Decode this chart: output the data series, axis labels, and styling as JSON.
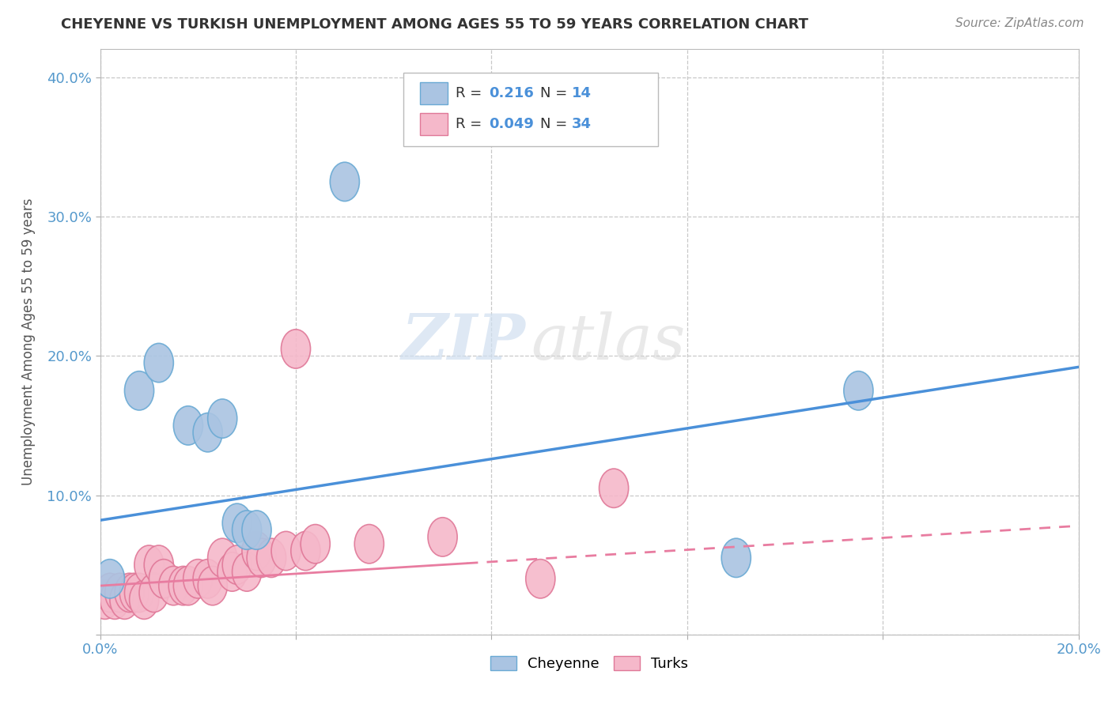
{
  "title": "CHEYENNE VS TURKISH UNEMPLOYMENT AMONG AGES 55 TO 59 YEARS CORRELATION CHART",
  "source": "Source: ZipAtlas.com",
  "ylabel_label": "Unemployment Among Ages 55 to 59 years",
  "xlim": [
    0.0,
    0.2
  ],
  "ylim": [
    0.0,
    0.42
  ],
  "x_ticks": [
    0.0,
    0.04,
    0.08,
    0.12,
    0.16,
    0.2
  ],
  "x_tick_labels": [
    "0.0%",
    "",
    "",
    "",
    "",
    "20.0%"
  ],
  "y_ticks": [
    0.0,
    0.1,
    0.2,
    0.3,
    0.4
  ],
  "y_tick_labels": [
    "",
    "10.0%",
    "20.0%",
    "30.0%",
    "40.0%"
  ],
  "background_color": "#ffffff",
  "grid_color": "#c8c8c8",
  "watermark_zip": "ZIP",
  "watermark_atlas": "atlas",
  "cheyenne_color": "#aac4e2",
  "cheyenne_edge": "#6aaad4",
  "turks_color": "#f5b8ca",
  "turks_edge": "#e07898",
  "cheyenne_line_color": "#4a90d9",
  "turks_line_color": "#e87ca0",
  "cheyenne_x": [
    0.002,
    0.008,
    0.012,
    0.018,
    0.022,
    0.025,
    0.028,
    0.03,
    0.032,
    0.05,
    0.13,
    0.155
  ],
  "cheyenne_y": [
    0.04,
    0.175,
    0.195,
    0.15,
    0.145,
    0.155,
    0.08,
    0.075,
    0.075,
    0.325,
    0.055,
    0.175
  ],
  "turks_x": [
    0.001,
    0.002,
    0.003,
    0.004,
    0.005,
    0.006,
    0.007,
    0.008,
    0.009,
    0.01,
    0.011,
    0.012,
    0.013,
    0.015,
    0.017,
    0.018,
    0.02,
    0.022,
    0.023,
    0.025,
    0.027,
    0.028,
    0.03,
    0.032,
    0.033,
    0.035,
    0.038,
    0.04,
    0.042,
    0.044,
    0.055,
    0.07,
    0.09,
    0.105
  ],
  "turks_y": [
    0.025,
    0.03,
    0.025,
    0.03,
    0.025,
    0.03,
    0.03,
    0.03,
    0.025,
    0.05,
    0.03,
    0.05,
    0.04,
    0.035,
    0.035,
    0.035,
    0.04,
    0.04,
    0.035,
    0.055,
    0.045,
    0.05,
    0.045,
    0.06,
    0.055,
    0.055,
    0.06,
    0.205,
    0.06,
    0.065,
    0.065,
    0.07,
    0.04,
    0.105
  ],
  "cheyenne_line_x0": 0.0,
  "cheyenne_line_y0": 0.082,
  "cheyenne_line_x1": 0.2,
  "cheyenne_line_y1": 0.192,
  "turks_line_x0": 0.0,
  "turks_line_y0": 0.035,
  "turks_line_x1": 0.2,
  "turks_line_y1": 0.078
}
